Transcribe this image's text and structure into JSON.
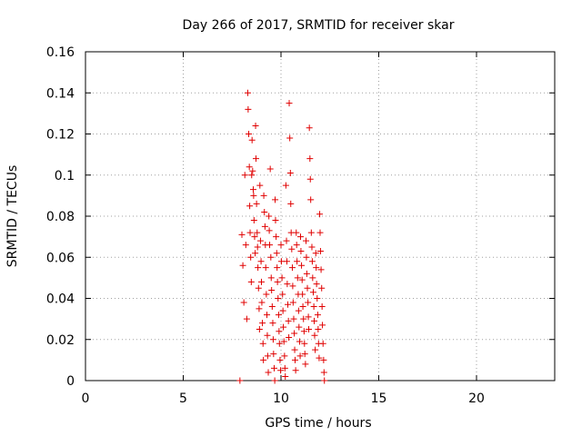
{
  "chart_data": {
    "type": "scatter",
    "title": "Day 266 of 2017, SRMTID for receiver skar",
    "xlabel": "GPS time / hours",
    "ylabel": "SRMTID / TECUs",
    "xlim": [
      0,
      24
    ],
    "ylim": [
      0,
      0.16
    ],
    "xticks": [
      "0",
      "5",
      "10",
      "15",
      "20"
    ],
    "yticks": [
      "0",
      "0.02",
      "0.04",
      "0.06",
      "0.08",
      "0.1",
      "0.12",
      "0.14",
      "0.16"
    ],
    "grid": true,
    "marker": "plus",
    "color": "#e00000",
    "series": [
      {
        "points": [
          [
            7.9,
            0.0
          ],
          [
            8.0,
            0.071
          ],
          [
            8.05,
            0.056
          ],
          [
            8.1,
            0.038
          ],
          [
            8.15,
            0.1
          ],
          [
            8.2,
            0.066
          ],
          [
            8.25,
            0.03
          ],
          [
            8.3,
            0.14
          ],
          [
            8.32,
            0.132
          ],
          [
            8.35,
            0.12
          ],
          [
            8.38,
            0.104
          ],
          [
            8.4,
            0.085
          ],
          [
            8.42,
            0.072
          ],
          [
            8.45,
            0.06
          ],
          [
            8.48,
            0.048
          ],
          [
            8.5,
            0.1
          ],
          [
            8.52,
            0.117
          ],
          [
            8.55,
            0.102
          ],
          [
            8.58,
            0.093
          ],
          [
            8.6,
            0.09
          ],
          [
            8.62,
            0.078
          ],
          [
            8.65,
            0.07
          ],
          [
            8.68,
            0.062
          ],
          [
            8.7,
            0.124
          ],
          [
            8.72,
            0.108
          ],
          [
            8.75,
            0.086
          ],
          [
            8.78,
            0.072
          ],
          [
            8.8,
            0.065
          ],
          [
            8.82,
            0.055
          ],
          [
            8.85,
            0.045
          ],
          [
            8.88,
            0.035
          ],
          [
            8.9,
            0.025
          ],
          [
            8.92,
            0.095
          ],
          [
            8.95,
            0.068
          ],
          [
            8.98,
            0.058
          ],
          [
            9.0,
            0.048
          ],
          [
            9.02,
            0.038
          ],
          [
            9.05,
            0.028
          ],
          [
            9.08,
            0.018
          ],
          [
            9.1,
            0.01
          ],
          [
            9.12,
            0.09
          ],
          [
            9.15,
            0.082
          ],
          [
            9.18,
            0.075
          ],
          [
            9.2,
            0.066
          ],
          [
            9.22,
            0.055
          ],
          [
            9.25,
            0.042
          ],
          [
            9.28,
            0.032
          ],
          [
            9.3,
            0.022
          ],
          [
            9.32,
            0.012
          ],
          [
            9.35,
            0.004
          ],
          [
            9.38,
            0.08
          ],
          [
            9.4,
            0.073
          ],
          [
            9.42,
            0.066
          ],
          [
            9.45,
            0.103
          ],
          [
            9.48,
            0.06
          ],
          [
            9.5,
            0.05
          ],
          [
            9.52,
            0.044
          ],
          [
            9.55,
            0.036
          ],
          [
            9.58,
            0.028
          ],
          [
            9.6,
            0.02
          ],
          [
            9.62,
            0.013
          ],
          [
            9.65,
            0.006
          ],
          [
            9.68,
            0.0
          ],
          [
            9.7,
            0.088
          ],
          [
            9.72,
            0.078
          ],
          [
            9.75,
            0.07
          ],
          [
            9.78,
            0.062
          ],
          [
            9.8,
            0.055
          ],
          [
            9.82,
            0.048
          ],
          [
            9.85,
            0.04
          ],
          [
            9.88,
            0.032
          ],
          [
            9.9,
            0.024
          ],
          [
            9.92,
            0.018
          ],
          [
            9.95,
            0.01
          ],
          [
            9.98,
            0.005
          ],
          [
            10.0,
            0.066
          ],
          [
            10.02,
            0.058
          ],
          [
            10.05,
            0.05
          ],
          [
            10.08,
            0.042
          ],
          [
            10.1,
            0.034
          ],
          [
            10.12,
            0.026
          ],
          [
            10.15,
            0.019
          ],
          [
            10.18,
            0.012
          ],
          [
            10.2,
            0.006
          ],
          [
            10.22,
            0.002
          ],
          [
            10.25,
            0.095
          ],
          [
            10.28,
            0.068
          ],
          [
            10.3,
            0.058
          ],
          [
            10.32,
            0.047
          ],
          [
            10.35,
            0.037
          ],
          [
            10.38,
            0.029
          ],
          [
            10.4,
            0.021
          ],
          [
            10.42,
            0.135
          ],
          [
            10.45,
            0.118
          ],
          [
            10.48,
            0.101
          ],
          [
            10.5,
            0.086
          ],
          [
            10.52,
            0.072
          ],
          [
            10.55,
            0.064
          ],
          [
            10.58,
            0.055
          ],
          [
            10.6,
            0.046
          ],
          [
            10.62,
            0.038
          ],
          [
            10.65,
            0.03
          ],
          [
            10.68,
            0.023
          ],
          [
            10.7,
            0.015
          ],
          [
            10.72,
            0.01
          ],
          [
            10.75,
            0.005
          ],
          [
            10.78,
            0.072
          ],
          [
            10.8,
            0.066
          ],
          [
            10.82,
            0.058
          ],
          [
            10.85,
            0.05
          ],
          [
            10.88,
            0.042
          ],
          [
            10.9,
            0.034
          ],
          [
            10.92,
            0.026
          ],
          [
            10.95,
            0.019
          ],
          [
            10.98,
            0.012
          ],
          [
            11.0,
            0.07
          ],
          [
            11.02,
            0.063
          ],
          [
            11.05,
            0.056
          ],
          [
            11.08,
            0.049
          ],
          [
            11.1,
            0.042
          ],
          [
            11.12,
            0.036
          ],
          [
            11.15,
            0.03
          ],
          [
            11.18,
            0.024
          ],
          [
            11.2,
            0.018
          ],
          [
            11.22,
            0.013
          ],
          [
            11.25,
            0.008
          ],
          [
            11.28,
            0.068
          ],
          [
            11.3,
            0.06
          ],
          [
            11.32,
            0.052
          ],
          [
            11.35,
            0.045
          ],
          [
            11.38,
            0.038
          ],
          [
            11.4,
            0.031
          ],
          [
            11.42,
            0.025
          ],
          [
            11.45,
            0.123
          ],
          [
            11.48,
            0.108
          ],
          [
            11.5,
            0.098
          ],
          [
            11.52,
            0.088
          ],
          [
            11.55,
            0.072
          ],
          [
            11.58,
            0.065
          ],
          [
            11.6,
            0.058
          ],
          [
            11.62,
            0.05
          ],
          [
            11.65,
            0.043
          ],
          [
            11.68,
            0.036
          ],
          [
            11.7,
            0.029
          ],
          [
            11.72,
            0.022
          ],
          [
            11.75,
            0.015
          ],
          [
            11.78,
            0.062
          ],
          [
            11.8,
            0.055
          ],
          [
            11.82,
            0.047
          ],
          [
            11.85,
            0.04
          ],
          [
            11.88,
            0.032
          ],
          [
            11.9,
            0.025
          ],
          [
            11.92,
            0.018
          ],
          [
            11.95,
            0.011
          ],
          [
            11.98,
            0.081
          ],
          [
            12.0,
            0.072
          ],
          [
            12.02,
            0.063
          ],
          [
            12.05,
            0.054
          ],
          [
            12.08,
            0.045
          ],
          [
            12.1,
            0.036
          ],
          [
            12.12,
            0.027
          ],
          [
            12.15,
            0.018
          ],
          [
            12.18,
            0.01
          ],
          [
            12.2,
            0.004
          ],
          [
            12.22,
            0.0
          ]
        ]
      }
    ]
  }
}
